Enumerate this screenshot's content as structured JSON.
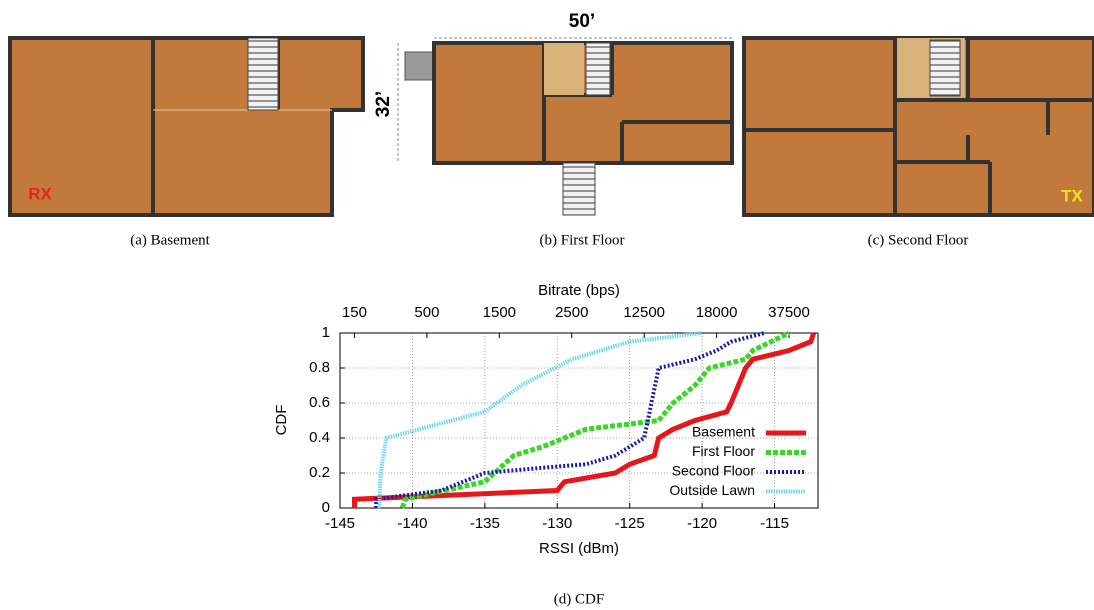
{
  "floor_plans": [
    {
      "caption": "(a)  Basement",
      "marker": "RX"
    },
    {
      "caption": "(b)  First Floor",
      "width_label": "50’",
      "depth_label": "32’"
    },
    {
      "caption": "(c)  Second Floor",
      "marker": "TX"
    }
  ],
  "chart_data": {
    "type": "line",
    "caption": "(d)  CDF",
    "x_label": "RSSI (dBm)",
    "y_label": "CDF",
    "x2_label": "Bitrate (bps)",
    "xlim": [
      -145,
      -112
    ],
    "ylim": [
      0,
      1
    ],
    "xticks": [
      -145,
      -140,
      -135,
      -130,
      -125,
      -120,
      -115
    ],
    "yticks": [
      0,
      0.2,
      0.4,
      0.6,
      0.8,
      1
    ],
    "x2ticks": [
      {
        "value": -144,
        "label": "150"
      },
      {
        "value": -139,
        "label": "500"
      },
      {
        "value": -134,
        "label": "1500"
      },
      {
        "value": -129,
        "label": "2500"
      },
      {
        "value": -124,
        "label": "12500"
      },
      {
        "value": -119,
        "label": "18000"
      },
      {
        "value": -114,
        "label": "37500"
      }
    ],
    "grid": true,
    "legend": "lower right",
    "series": [
      {
        "name": "Basement",
        "color": "#e8161b",
        "x": [
          -144,
          -144,
          -130,
          -129.5,
          -126,
          -125,
          -123.3,
          -123,
          -122,
          -120.5,
          -118.3,
          -118,
          -117.5,
          -117,
          -116.5,
          -114,
          -112.5,
          -112.3
        ],
        "values": [
          0,
          0.05,
          0.1,
          0.15,
          0.2,
          0.25,
          0.3,
          0.4,
          0.45,
          0.5,
          0.55,
          0.6,
          0.7,
          0.8,
          0.85,
          0.9,
          0.95,
          1
        ]
      },
      {
        "name": "First Floor",
        "color": "#3bd62a",
        "x": [
          -140.7,
          -140.5,
          -135,
          -133,
          -131,
          -129.5,
          -128,
          -126,
          -123,
          -122,
          -120.5,
          -119.5,
          -117,
          -116.5,
          -114
        ],
        "values": [
          0,
          0.05,
          0.15,
          0.3,
          0.35,
          0.4,
          0.45,
          0.47,
          0.5,
          0.6,
          0.7,
          0.8,
          0.85,
          0.9,
          1
        ]
      },
      {
        "name": "Second Floor",
        "color": "#1a1aa8",
        "x": [
          -142.5,
          -142.5,
          -138,
          -135,
          -131,
          -128,
          -126,
          -124,
          -123.5,
          -123,
          -120.5,
          -119,
          -118,
          -115.7
        ],
        "values": [
          0,
          0.05,
          0.1,
          0.2,
          0.23,
          0.25,
          0.3,
          0.4,
          0.6,
          0.8,
          0.85,
          0.9,
          0.95,
          1
        ]
      },
      {
        "name": "Outside Lawn",
        "color": "#6fd6f0",
        "x": [
          -142.3,
          -142.2,
          -141.8,
          -135,
          -132.5,
          -129,
          -125,
          -120
        ],
        "values": [
          0,
          0.2,
          0.4,
          0.55,
          0.7,
          0.85,
          0.95,
          1
        ]
      }
    ]
  }
}
